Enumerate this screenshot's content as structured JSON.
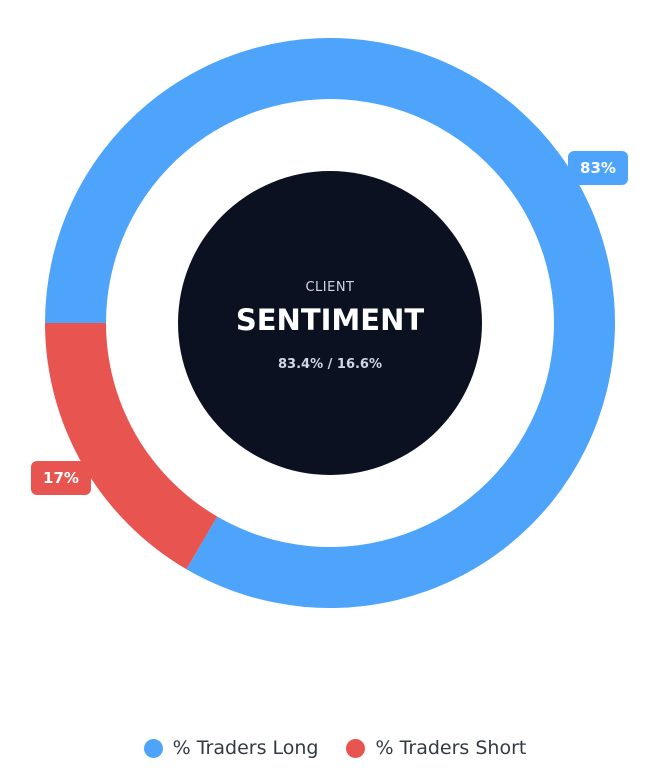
{
  "chart_data": {
    "type": "pie",
    "variant": "donut",
    "series": [
      {
        "name": "% Traders Long",
        "value": 83.4,
        "label": "83%",
        "color": "#4ea4fb"
      },
      {
        "name": "% Traders Short",
        "value": 16.6,
        "label": "17%",
        "color": "#e8544f"
      }
    ],
    "center": {
      "kicker": "CLIENT",
      "headline": "SENTIMENT",
      "ratio": "83.4% / 16.6%",
      "background": "#0b1120"
    },
    "legend": "bottom-center"
  }
}
